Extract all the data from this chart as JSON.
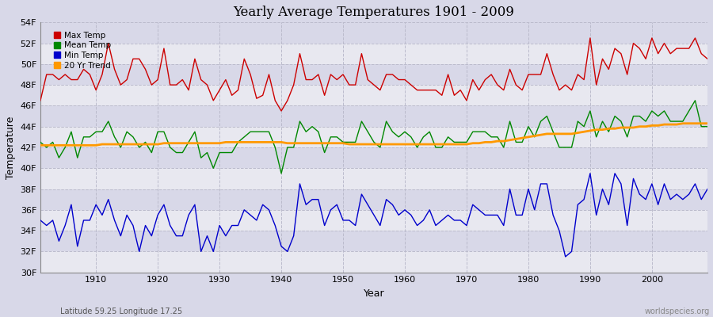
{
  "title": "Yearly Average Temperatures 1901 - 2009",
  "xlabel": "Year",
  "ylabel": "Temperature",
  "subtitle_left": "Latitude 59.25 Longitude 17.25",
  "subtitle_right": "worldspecies.org",
  "ylim": [
    30,
    54
  ],
  "xlim": [
    1901,
    2009
  ],
  "yticks": [
    30,
    32,
    34,
    36,
    38,
    40,
    42,
    44,
    46,
    48,
    50,
    52,
    54
  ],
  "ytick_labels": [
    "30F",
    "32F",
    "34F",
    "36F",
    "38F",
    "40F",
    "42F",
    "44F",
    "46F",
    "48F",
    "50F",
    "52F",
    "54F"
  ],
  "xticks": [
    1910,
    1920,
    1930,
    1940,
    1950,
    1960,
    1970,
    1980,
    1990,
    2000
  ],
  "years": [
    1901,
    1902,
    1903,
    1904,
    1905,
    1906,
    1907,
    1908,
    1909,
    1910,
    1911,
    1912,
    1913,
    1914,
    1915,
    1916,
    1917,
    1918,
    1919,
    1920,
    1921,
    1922,
    1923,
    1924,
    1925,
    1926,
    1927,
    1928,
    1929,
    1930,
    1931,
    1932,
    1933,
    1934,
    1935,
    1936,
    1937,
    1938,
    1939,
    1940,
    1941,
    1942,
    1943,
    1944,
    1945,
    1946,
    1947,
    1948,
    1949,
    1950,
    1951,
    1952,
    1953,
    1954,
    1955,
    1956,
    1957,
    1958,
    1959,
    1960,
    1961,
    1962,
    1963,
    1964,
    1965,
    1966,
    1967,
    1968,
    1969,
    1970,
    1971,
    1972,
    1973,
    1974,
    1975,
    1976,
    1977,
    1978,
    1979,
    1980,
    1981,
    1982,
    1983,
    1984,
    1985,
    1986,
    1987,
    1988,
    1989,
    1990,
    1991,
    1992,
    1993,
    1994,
    1995,
    1996,
    1997,
    1998,
    1999,
    2000,
    2001,
    2002,
    2003,
    2004,
    2005,
    2006,
    2007,
    2008,
    2009
  ],
  "max_temp": [
    46.5,
    49.0,
    49.0,
    48.5,
    49.0,
    48.5,
    48.5,
    49.5,
    49.0,
    47.5,
    49.0,
    52.0,
    49.5,
    48.0,
    48.5,
    50.5,
    50.5,
    49.5,
    48.0,
    48.5,
    51.5,
    48.0,
    48.0,
    48.5,
    47.5,
    50.5,
    48.5,
    48.0,
    46.5,
    47.5,
    48.5,
    47.0,
    47.5,
    50.5,
    49.0,
    46.7,
    47.0,
    49.0,
    46.5,
    45.5,
    46.5,
    48.0,
    51.0,
    48.5,
    48.5,
    49.0,
    47.0,
    49.0,
    48.5,
    49.0,
    48.0,
    48.0,
    51.0,
    48.5,
    48.0,
    47.5,
    49.0,
    49.0,
    48.5,
    48.5,
    48.0,
    47.5,
    47.5,
    47.5,
    47.5,
    47.0,
    49.0,
    47.0,
    47.5,
    46.5,
    48.5,
    47.5,
    48.5,
    49.0,
    48.0,
    47.5,
    49.5,
    48.0,
    47.5,
    49.0,
    49.0,
    49.0,
    51.0,
    49.0,
    47.5,
    48.0,
    47.5,
    49.0,
    48.5,
    52.5,
    48.0,
    50.5,
    49.5,
    51.5,
    51.0,
    49.0,
    52.0,
    51.5,
    50.5,
    52.5,
    51.0,
    52.0,
    51.0,
    51.5,
    51.5,
    51.5,
    52.5,
    51.0,
    50.5
  ],
  "mean_temp": [
    42.5,
    42.0,
    42.5,
    41.0,
    42.0,
    43.5,
    41.0,
    43.0,
    43.0,
    43.5,
    43.5,
    44.5,
    43.0,
    42.0,
    43.5,
    43.0,
    42.0,
    42.5,
    41.5,
    43.5,
    43.5,
    42.0,
    41.5,
    41.5,
    42.5,
    43.5,
    41.0,
    41.5,
    40.0,
    41.5,
    41.5,
    41.5,
    42.5,
    43.0,
    43.5,
    43.5,
    43.5,
    43.5,
    42.0,
    39.5,
    42.0,
    42.0,
    44.5,
    43.5,
    44.0,
    43.5,
    41.5,
    43.0,
    43.0,
    42.5,
    42.5,
    42.5,
    44.5,
    43.5,
    42.5,
    42.0,
    44.5,
    43.5,
    43.0,
    43.5,
    43.0,
    42.0,
    43.0,
    43.5,
    42.0,
    42.0,
    43.0,
    42.5,
    42.5,
    42.5,
    43.5,
    43.5,
    43.5,
    43.0,
    43.0,
    42.0,
    44.5,
    42.5,
    42.5,
    44.0,
    43.0,
    44.5,
    45.0,
    43.5,
    42.0,
    42.0,
    42.0,
    44.5,
    44.0,
    45.5,
    43.0,
    44.5,
    43.5,
    45.0,
    44.5,
    43.0,
    45.0,
    45.0,
    44.5,
    45.5,
    45.0,
    45.5,
    44.5,
    44.5,
    44.5,
    45.5,
    46.5,
    44.0,
    44.0
  ],
  "min_temp": [
    35.0,
    34.5,
    35.0,
    33.0,
    34.5,
    36.5,
    32.5,
    35.0,
    35.0,
    36.5,
    35.5,
    37.0,
    35.0,
    33.5,
    35.5,
    34.5,
    32.0,
    34.5,
    33.5,
    35.5,
    36.5,
    34.5,
    33.5,
    33.5,
    35.5,
    36.5,
    32.0,
    33.5,
    32.0,
    34.5,
    33.5,
    34.5,
    34.5,
    36.0,
    35.5,
    35.0,
    36.5,
    36.0,
    34.5,
    32.5,
    32.0,
    33.5,
    38.5,
    36.5,
    37.0,
    37.0,
    34.5,
    36.0,
    36.5,
    35.0,
    35.0,
    34.5,
    37.5,
    36.5,
    35.5,
    34.5,
    37.0,
    36.5,
    35.5,
    36.0,
    35.5,
    34.5,
    35.0,
    36.0,
    34.5,
    35.0,
    35.5,
    35.0,
    35.0,
    34.5,
    36.5,
    36.0,
    35.5,
    35.5,
    35.5,
    34.5,
    38.0,
    35.5,
    35.5,
    38.0,
    36.0,
    38.5,
    38.5,
    35.5,
    34.0,
    31.5,
    32.0,
    36.5,
    37.0,
    39.5,
    35.5,
    38.0,
    36.5,
    39.5,
    38.5,
    34.5,
    39.0,
    37.5,
    37.0,
    38.5,
    36.5,
    38.5,
    37.0,
    37.5,
    37.0,
    37.5,
    38.5,
    37.0,
    38.0
  ],
  "trend": [
    42.2,
    42.2,
    42.2,
    42.2,
    42.2,
    42.2,
    42.2,
    42.2,
    42.2,
    42.2,
    42.3,
    42.3,
    42.3,
    42.3,
    42.3,
    42.3,
    42.3,
    42.3,
    42.3,
    42.3,
    42.4,
    42.4,
    42.4,
    42.4,
    42.4,
    42.4,
    42.4,
    42.4,
    42.4,
    42.4,
    42.5,
    42.5,
    42.5,
    42.5,
    42.5,
    42.5,
    42.5,
    42.5,
    42.5,
    42.5,
    42.4,
    42.4,
    42.4,
    42.4,
    42.4,
    42.4,
    42.4,
    42.4,
    42.4,
    42.4,
    42.3,
    42.3,
    42.3,
    42.3,
    42.3,
    42.3,
    42.3,
    42.3,
    42.3,
    42.3,
    42.3,
    42.3,
    42.3,
    42.3,
    42.3,
    42.3,
    42.3,
    42.3,
    42.3,
    42.3,
    42.4,
    42.4,
    42.5,
    42.5,
    42.6,
    42.6,
    42.7,
    42.8,
    42.9,
    43.0,
    43.1,
    43.2,
    43.3,
    43.3,
    43.3,
    43.3,
    43.3,
    43.4,
    43.5,
    43.6,
    43.7,
    43.7,
    43.8,
    43.8,
    43.9,
    43.9,
    43.9,
    44.0,
    44.0,
    44.1,
    44.1,
    44.2,
    44.2,
    44.2,
    44.3,
    44.3,
    44.3,
    44.3,
    44.3
  ],
  "max_color": "#cc0000",
  "mean_color": "#008800",
  "min_color": "#0000cc",
  "trend_color": "#ff9900",
  "fig_bg": "#d8d8e8",
  "plot_bg_light": "#e8e8f0",
  "plot_bg_dark": "#d8d8e8",
  "grid_color": "#bbbbcc",
  "legend_labels": [
    "Max Temp",
    "Mean Temp",
    "Min Temp",
    "20 Yr Trend"
  ],
  "legend_colors": [
    "#cc0000",
    "#008800",
    "#0000cc",
    "#ff9900"
  ]
}
